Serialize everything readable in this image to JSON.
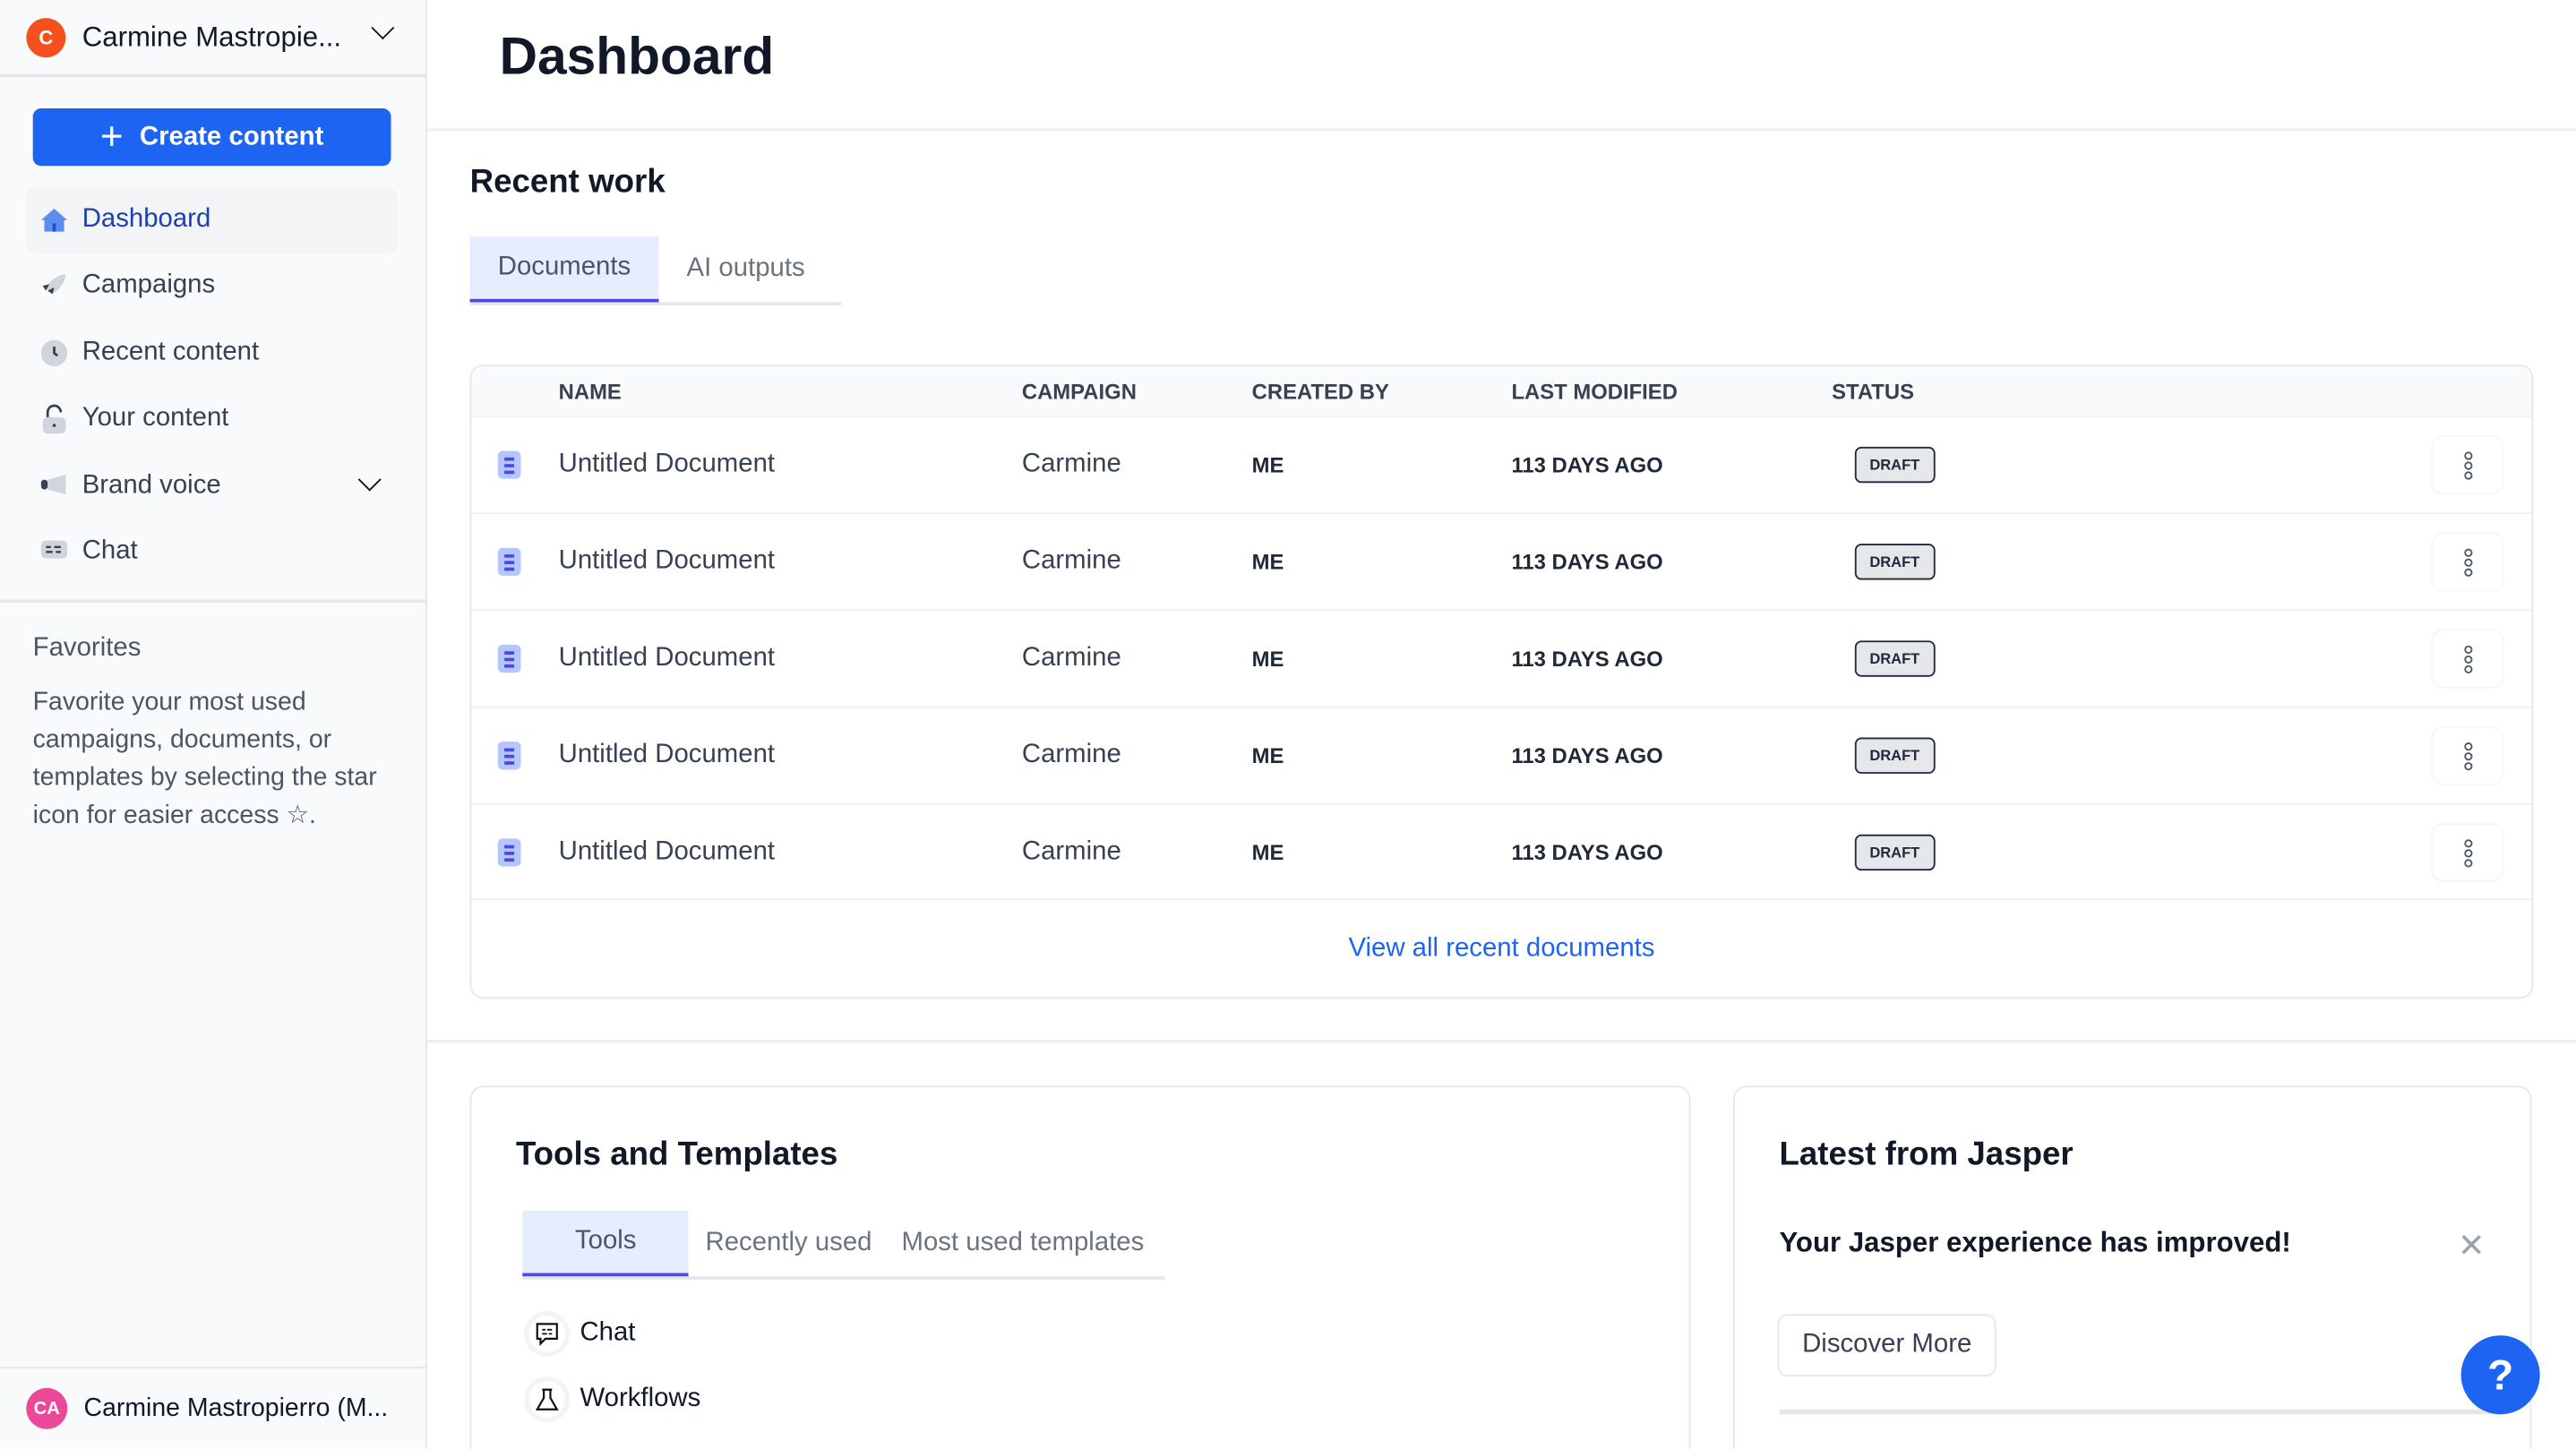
{
  "colors": {
    "accent": "#1d64f2",
    "tab_indicator": "#4f46e5",
    "account_avatar": "#f4511e",
    "user_avatar": "#ec4899"
  },
  "account": {
    "initial": "C",
    "name": "Carmine Mastropie..."
  },
  "sidebar": {
    "create_label": "Create content",
    "items": [
      {
        "label": "Dashboard",
        "icon": "home-icon"
      },
      {
        "label": "Campaigns",
        "icon": "rocket-icon"
      },
      {
        "label": "Recent content",
        "icon": "clock-icon"
      },
      {
        "label": "Your content",
        "icon": "lock-icon"
      },
      {
        "label": "Brand voice",
        "icon": "megaphone-icon"
      },
      {
        "label": "Chat",
        "icon": "chat-icon"
      }
    ],
    "favorites_title": "Favorites",
    "favorites_text": "Favorite your most used campaigns, documents, or templates by selecting the star icon for easier access",
    "favorites_suffix": "."
  },
  "user": {
    "initials": "CA",
    "name": "Carmine Mastropierro (M..."
  },
  "header": {
    "title": "Dashboard"
  },
  "recent": {
    "title": "Recent work",
    "tabs": [
      "Documents",
      "AI outputs"
    ],
    "columns": [
      "NAME",
      "CAMPAIGN",
      "CREATED BY",
      "LAST MODIFIED",
      "STATUS"
    ],
    "rows": [
      {
        "name": "Untitled Document",
        "campaign": "Carmine",
        "created_by": "ME",
        "modified": "113 DAYS AGO",
        "status": "DRAFT"
      },
      {
        "name": "Untitled Document",
        "campaign": "Carmine",
        "created_by": "ME",
        "modified": "113 DAYS AGO",
        "status": "DRAFT"
      },
      {
        "name": "Untitled Document",
        "campaign": "Carmine",
        "created_by": "ME",
        "modified": "113 DAYS AGO",
        "status": "DRAFT"
      },
      {
        "name": "Untitled Document",
        "campaign": "Carmine",
        "created_by": "ME",
        "modified": "113 DAYS AGO",
        "status": "DRAFT"
      },
      {
        "name": "Untitled Document",
        "campaign": "Carmine",
        "created_by": "ME",
        "modified": "113 DAYS AGO",
        "status": "DRAFT"
      }
    ],
    "view_all": "View all recent documents"
  },
  "tools": {
    "title": "Tools and Templates",
    "tabs": [
      "Tools",
      "Recently used",
      "Most used templates"
    ],
    "items": [
      {
        "label": "Chat",
        "icon": "chat-icon"
      },
      {
        "label": "Workflows",
        "icon": "flask-icon"
      }
    ]
  },
  "latest": {
    "title": "Latest from Jasper",
    "headline": "Your Jasper experience has improved!",
    "button": "Discover More"
  },
  "help": {
    "label": "?"
  }
}
